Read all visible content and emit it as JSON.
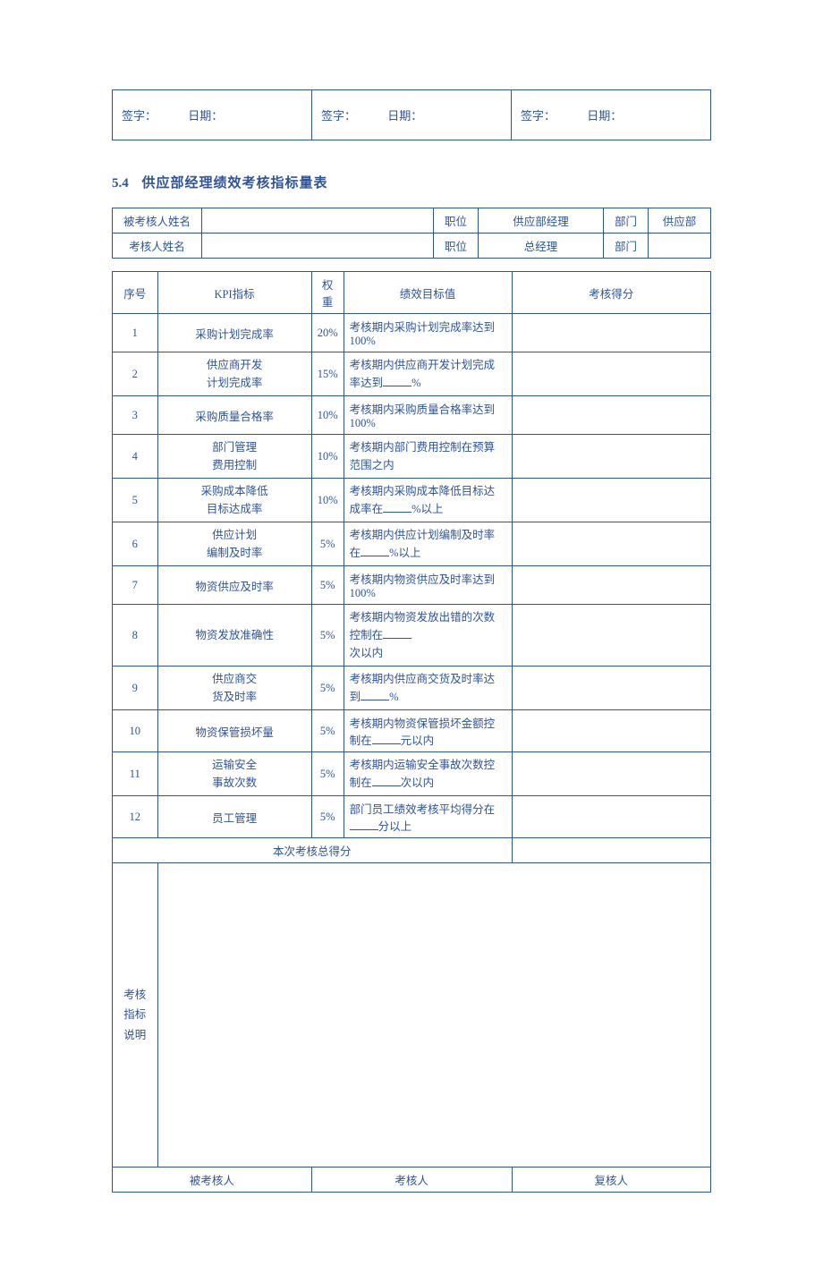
{
  "colors": {
    "accent": "#2e5496",
    "border": "#2e5496",
    "background": "#ffffff"
  },
  "signature_row": {
    "sign_label": "签字：",
    "date_label": "日期："
  },
  "section": {
    "number": "5.4",
    "title": "供应部经理绩效考核指标量表"
  },
  "info": {
    "rows": [
      {
        "name_label": "被考核人姓名",
        "name_value": "",
        "pos_label": "职位",
        "pos_value": "供应部经理",
        "dept_label": "部门",
        "dept_value": "供应部"
      },
      {
        "name_label": "考核人姓名",
        "name_value": "",
        "pos_label": "职位",
        "pos_value": "总经理",
        "dept_label": "部门",
        "dept_value": ""
      }
    ],
    "col_widths": {
      "name_label": "100px",
      "name_value": "200px",
      "pos_label": "50px",
      "pos_value": "140px",
      "dept_label": "50px",
      "dept_value": "70px"
    }
  },
  "kpi": {
    "headers": {
      "seq": "序号",
      "kpi": "KPI指标",
      "weight": "权重",
      "target": "绩效目标值",
      "score": "考核得分"
    },
    "rows": [
      {
        "seq": "1",
        "kpi": "采购计划完成率",
        "weight": "20%",
        "target": "考核期内采购计划完成率达到100%"
      },
      {
        "seq": "2",
        "kpi": "供应商开发\n计划完成率",
        "weight": "15%",
        "target": "考核期内供应商开发计划完成率达到____%"
      },
      {
        "seq": "3",
        "kpi": "采购质量合格率",
        "weight": "10%",
        "target": "考核期内采购质量合格率达到100%"
      },
      {
        "seq": "4",
        "kpi": "部门管理\n费用控制",
        "weight": "10%",
        "target": "考核期内部门费用控制在预算范围之内"
      },
      {
        "seq": "5",
        "kpi": "采购成本降低\n目标达成率",
        "weight": "10%",
        "target": "考核期内采购成本降低目标达成率在____%以上"
      },
      {
        "seq": "6",
        "kpi": "供应计划\n编制及时率",
        "weight": "5%",
        "target": "考核期内供应计划编制及时率在____%以上"
      },
      {
        "seq": "7",
        "kpi": "物资供应及时率",
        "weight": "5%",
        "target": "考核期内物资供应及时率达到100%"
      },
      {
        "seq": "8",
        "kpi": "物资发放准确性",
        "weight": "5%",
        "target": "考核期内物资发放出错的次数控制在____\n次以内"
      },
      {
        "seq": "9",
        "kpi": "供应商交\n货及时率",
        "weight": "5%",
        "target": "考核期内供应商交货及时率达到____%"
      },
      {
        "seq": "10",
        "kpi": "物资保管损坏量",
        "weight": "5%",
        "target": "考核期内物资保管损坏金额控制在____元以内"
      },
      {
        "seq": "11",
        "kpi": "运输安全\n事故次数",
        "weight": "5%",
        "target": "考核期内运输安全事故次数控制在____次以内"
      },
      {
        "seq": "12",
        "kpi": "员工管理",
        "weight": "5%",
        "target": "部门员工绩效考核平均得分在____分以上"
      }
    ],
    "total_label": "本次考核总得分",
    "notes_label": "考核\n指标\n说明",
    "footer": {
      "assessee": "被考核人",
      "assessor": "考核人",
      "reviewer": "复核人"
    }
  }
}
